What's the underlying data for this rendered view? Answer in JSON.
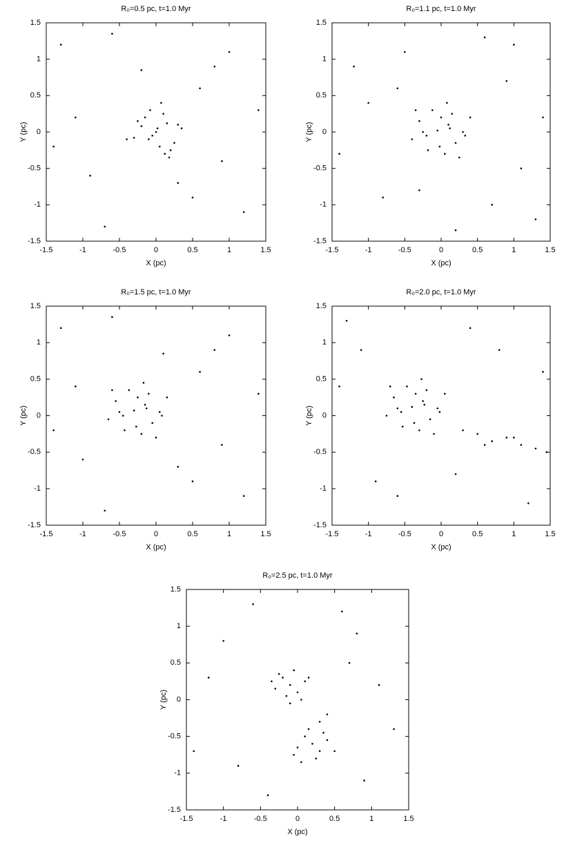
{
  "chart_data": [
    {
      "type": "scatter",
      "title": "R₀=0.5 pc, t=1.0 Myr",
      "x_label": "X (pc)",
      "y_label": "Y (pc)",
      "color": "#000000",
      "xlim": [
        -1.5,
        1.5
      ],
      "ylim": [
        -1.5,
        1.5
      ],
      "xticks": [
        -1.5,
        -1,
        -0.5,
        0,
        0.5,
        1,
        1.5
      ],
      "yticks": [
        -1.5,
        -1,
        -0.5,
        0,
        0.5,
        1,
        1.5
      ],
      "x": [
        0.02,
        -0.1,
        0.15,
        0.05,
        -0.2,
        0.1,
        -0.05,
        0.25,
        -0.15,
        0.0,
        0.3,
        -0.3,
        0.12,
        -0.08,
        0.2,
        -0.25,
        0.07,
        0.35,
        -0.4,
        0.18,
        -1.3,
        1.2,
        -0.9,
        0.8,
        -0.6,
        1.4,
        -1.1,
        0.5,
        0.9,
        -0.7,
        1.0,
        -1.4,
        0.6,
        -0.2,
        0.3
      ],
      "y": [
        0.05,
        -0.1,
        0.12,
        -0.2,
        0.08,
        0.25,
        -0.05,
        -0.15,
        0.2,
        0.0,
        0.1,
        -0.08,
        -0.3,
        0.3,
        -0.25,
        0.15,
        0.4,
        0.05,
        -0.1,
        -0.35,
        1.2,
        -1.1,
        -0.6,
        0.9,
        1.35,
        0.3,
        0.2,
        -0.9,
        -0.4,
        -1.3,
        1.1,
        -0.2,
        0.6,
        0.85,
        -0.7
      ]
    },
    {
      "type": "scatter",
      "title": "R₀=1.1 pc, t=1.0 Myr",
      "x_label": "X (pc)",
      "y_label": "Y (pc)",
      "color": "#000000",
      "xlim": [
        -1.5,
        1.5
      ],
      "ylim": [
        -1.5,
        1.5
      ],
      "xticks": [
        -1.5,
        -1,
        -0.5,
        0,
        0.5,
        1,
        1.5
      ],
      "yticks": [
        -1.5,
        -1,
        -0.5,
        0,
        0.5,
        1,
        1.5
      ],
      "x": [
        -0.05,
        0.1,
        -0.2,
        0.2,
        0.0,
        -0.3,
        0.3,
        0.05,
        -0.12,
        0.15,
        -0.4,
        0.4,
        -0.02,
        0.25,
        -0.18,
        0.08,
        -0.35,
        0.33,
        0.12,
        -0.25,
        -1.2,
        1.3,
        -0.8,
        0.9,
        -1.4,
        0.6,
        1.1,
        -0.5,
        0.2,
        -1.0,
        1.4,
        -0.3,
        0.7,
        -0.6,
        1.0
      ],
      "y": [
        0.02,
        0.1,
        -0.05,
        -0.15,
        0.2,
        0.15,
        0.0,
        -0.3,
        0.3,
        0.25,
        -0.1,
        0.2,
        -0.2,
        -0.35,
        -0.25,
        0.4,
        0.3,
        -0.05,
        0.05,
        0.0,
        0.9,
        -1.2,
        -0.9,
        0.7,
        -0.3,
        1.3,
        -0.5,
        1.1,
        -1.35,
        0.4,
        0.2,
        -0.8,
        -1.0,
        0.6,
        1.2
      ]
    },
    {
      "type": "scatter",
      "title": "R₀=1.5 pc, t=1.0 Myr",
      "x_label": "X (pc)",
      "y_label": "Y (pc)",
      "color": "#000000",
      "xlim": [
        -1.5,
        1.5
      ],
      "ylim": [
        -1.5,
        1.5
      ],
      "xticks": [
        -1.5,
        -1,
        -0.5,
        0,
        0.5,
        1,
        1.5
      ],
      "yticks": [
        -1.5,
        -1,
        -0.5,
        0,
        0.5,
        1,
        1.5
      ],
      "x": [
        -0.3,
        -0.15,
        -0.45,
        -0.05,
        -0.25,
        -0.55,
        0.05,
        -0.2,
        -0.37,
        -0.1,
        -0.65,
        0.15,
        -0.27,
        0.0,
        -0.43,
        -0.17,
        -0.6,
        0.08,
        -0.13,
        -0.5,
        -1.3,
        1.2,
        -1.0,
        0.8,
        -0.6,
        1.4,
        -1.1,
        0.5,
        0.9,
        -0.7,
        1.0,
        -1.4,
        0.6,
        0.1,
        0.3
      ],
      "y": [
        0.07,
        0.15,
        0.0,
        -0.1,
        0.25,
        0.2,
        0.05,
        -0.25,
        0.35,
        0.3,
        -0.05,
        0.25,
        -0.15,
        -0.3,
        -0.2,
        0.45,
        0.35,
        0.0,
        0.1,
        0.05,
        1.2,
        -1.1,
        -0.6,
        0.9,
        1.35,
        0.3,
        0.4,
        -0.9,
        -0.4,
        -1.3,
        1.1,
        -0.2,
        0.6,
        0.85,
        -0.7
      ]
    },
    {
      "type": "scatter",
      "title": "R₀=2.0 pc, t=1.0 Myr",
      "x_label": "X (pc)",
      "y_label": "Y (pc)",
      "color": "#000000",
      "xlim": [
        -1.5,
        1.5
      ],
      "ylim": [
        -1.5,
        1.5
      ],
      "xticks": [
        -1.5,
        -1,
        -0.5,
        0,
        0.5,
        1,
        1.5
      ],
      "yticks": [
        -1.5,
        -1,
        -0.5,
        0,
        0.5,
        1,
        1.5
      ],
      "x": [
        -0.4,
        -0.25,
        -0.55,
        -0.15,
        -0.35,
        -0.65,
        -0.05,
        -0.3,
        -0.47,
        -0.2,
        -0.75,
        0.05,
        -0.37,
        -0.1,
        -0.53,
        -0.27,
        -0.7,
        -0.02,
        -0.23,
        -0.6,
        0.3,
        0.5,
        0.7,
        0.9,
        1.1,
        1.3,
        1.45,
        0.6,
        1.0,
        -1.3,
        -1.1,
        -0.9,
        0.8,
        0.4,
        1.2,
        -0.6,
        0.2,
        -1.4,
        1.4
      ],
      "y": [
        0.12,
        0.2,
        0.05,
        -0.05,
        0.3,
        0.25,
        0.1,
        -0.2,
        0.4,
        0.35,
        0.0,
        0.3,
        -0.1,
        -0.25,
        -0.15,
        0.5,
        0.4,
        0.05,
        0.15,
        0.1,
        -0.2,
        -0.25,
        -0.35,
        -0.3,
        -0.4,
        -0.45,
        -0.5,
        -0.4,
        -0.3,
        1.3,
        0.9,
        -0.9,
        0.9,
        1.2,
        -1.2,
        -1.1,
        -0.8,
        0.4,
        0.6
      ]
    },
    {
      "type": "scatter",
      "title": "R₀=2.5 pc, t=1.0 Myr",
      "x_label": "X (pc)",
      "y_label": "Y (pc)",
      "color": "#000000",
      "xlim": [
        -1.5,
        1.5
      ],
      "ylim": [
        -1.5,
        1.5
      ],
      "xticks": [
        -1.5,
        -1,
        -0.5,
        0,
        0.5,
        1,
        1.5
      ],
      "yticks": [
        -1.5,
        -1,
        -0.5,
        0,
        0.5,
        1,
        1.5
      ],
      "x": [
        -0.1,
        -0.2,
        0.0,
        -0.3,
        0.1,
        -0.15,
        -0.05,
        -0.25,
        0.05,
        -0.35,
        0.15,
        -0.1,
        0.2,
        0.1,
        0.3,
        0.0,
        0.4,
        0.25,
        0.15,
        0.35,
        0.05,
        0.5,
        -0.05,
        0.3,
        -1.2,
        1.1,
        -0.8,
        0.8,
        -0.6,
        1.3,
        -1.4,
        0.6,
        0.9,
        -0.4,
        0.7,
        -1.0,
        0.4
      ],
      "y": [
        0.2,
        0.3,
        0.1,
        0.15,
        0.25,
        0.05,
        0.4,
        0.35,
        0.0,
        0.25,
        0.3,
        -0.05,
        -0.6,
        -0.5,
        -0.7,
        -0.65,
        -0.55,
        -0.8,
        -0.4,
        -0.45,
        -0.85,
        -0.7,
        -0.75,
        -0.3,
        0.3,
        0.2,
        -0.9,
        0.9,
        1.3,
        -0.4,
        -0.7,
        1.2,
        -1.1,
        -1.3,
        0.5,
        0.8,
        -0.2
      ]
    }
  ]
}
